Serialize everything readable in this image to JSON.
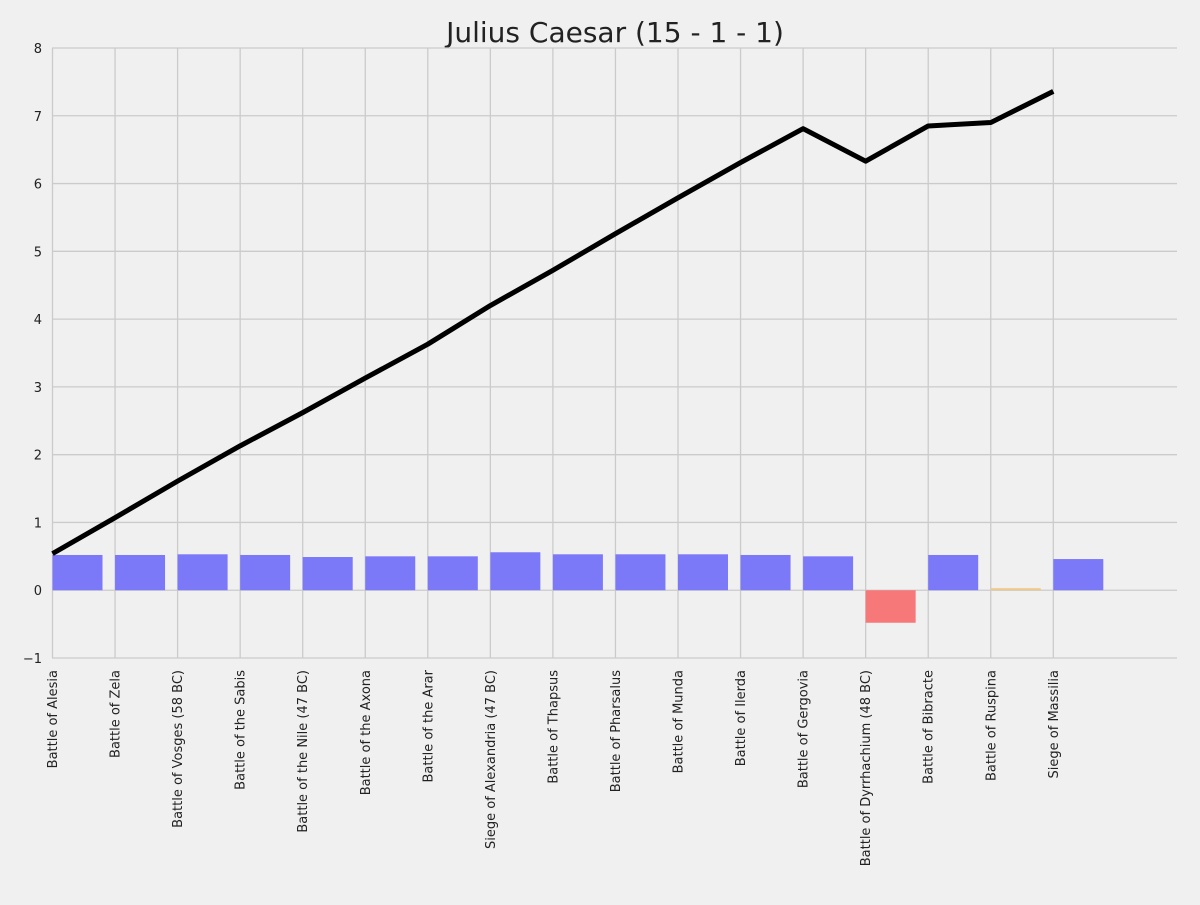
{
  "chart_data": {
    "type": "bar",
    "title": "Julius Caesar (15 - 1 - 1)",
    "xlabel": "",
    "ylabel": "",
    "ylim": [
      -1,
      8
    ],
    "yticks": [
      8,
      7,
      6,
      5,
      4,
      3,
      2,
      1,
      0,
      -1
    ],
    "ytick_labels": [
      "8",
      "7",
      "6",
      "5",
      "4",
      "3",
      "2",
      "1",
      "0",
      "−1"
    ],
    "grid": true,
    "legend": "none",
    "categories": [
      "Battle of Alesia",
      "Battle of Zela",
      "Battle of Vosges (58 BC)",
      "Battle of the Sabis",
      "Battle of the Nile (47 BC)",
      "Battle of the Axona",
      "Battle of the Arar",
      "Siege of Alexandria (47 BC)",
      "Battle of Thapsus",
      "Battle of Pharsalus",
      "Battle of Munda",
      "Battle of Ilerda",
      "Battle of Gergovia",
      "Battle of Dyrrhachium (48 BC)",
      "Battle of Bibracte",
      "Battle of Ruspina",
      "Siege of Massilia"
    ],
    "series": [
      {
        "type": "bar",
        "values": [
          0.52,
          0.52,
          0.53,
          0.52,
          0.49,
          0.5,
          0.5,
          0.56,
          0.53,
          0.53,
          0.53,
          0.52,
          0.5,
          -0.48,
          0.52,
          0.03,
          0.46
        ],
        "colors": [
          "#7b79f8",
          "#7b79f8",
          "#7b79f8",
          "#7b79f8",
          "#7b79f8",
          "#7b79f8",
          "#7b79f8",
          "#7b79f8",
          "#7b79f8",
          "#7b79f8",
          "#7b79f8",
          "#7b79f8",
          "#7b79f8",
          "#f77878",
          "#7b79f8",
          "#f0c88a",
          "#7b79f8"
        ]
      },
      {
        "type": "line",
        "values": [
          0.54,
          1.07,
          1.61,
          2.13,
          2.62,
          3.13,
          3.63,
          4.2,
          4.72,
          5.26,
          5.79,
          6.31,
          6.81,
          6.33,
          6.85,
          6.9,
          7.36
        ],
        "color": "#000000"
      }
    ]
  }
}
